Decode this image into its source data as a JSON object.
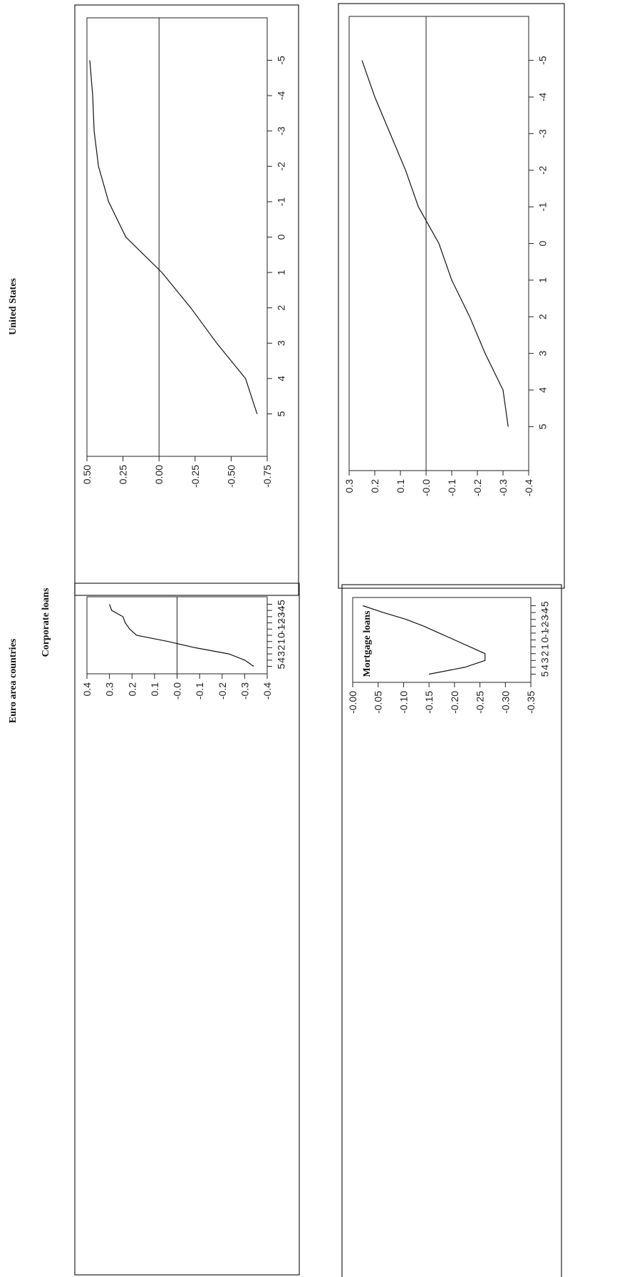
{
  "page": {
    "headings": {
      "euro": "Euro area countries",
      "corporate": "Corporate loans",
      "us": "United States",
      "mortgage": "Mortgage loans"
    }
  },
  "chart_data": [
    {
      "type": "line",
      "title": "",
      "panel": "Euro area countries / Corporate loans",
      "x": [
        -5,
        -4,
        -3,
        -2,
        -1,
        0,
        1,
        2,
        3,
        4,
        5
      ],
      "series": [
        {
          "values": [
            0.3,
            0.29,
            0.24,
            0.23,
            0.21,
            0.18,
            0.04,
            -0.08,
            -0.23,
            -0.3,
            -0.34
          ]
        }
      ],
      "xlim": [
        -6.2,
        6.2
      ],
      "xticks": [
        "-5",
        "-4",
        "-3",
        "-2",
        "-1",
        "0",
        "1",
        "2",
        "3",
        "4",
        "5"
      ],
      "ylim": [
        -0.4,
        0.4
      ],
      "yticks": [
        "0.4",
        "0.3",
        "0.2",
        "0.1",
        "-0.0",
        "-0.1",
        "-0.2",
        "-0.3",
        "-0.4"
      ],
      "zero_line": true
    },
    {
      "type": "line",
      "title": "",
      "panel": "United States / Corporate loans",
      "x": [
        -5,
        -4,
        -3,
        -2,
        -1,
        0,
        1,
        2,
        3,
        4,
        5
      ],
      "series": [
        {
          "values": [
            0.48,
            0.46,
            0.45,
            0.42,
            0.35,
            0.23,
            -0.02,
            -0.22,
            -0.4,
            -0.6,
            -0.68
          ]
        }
      ],
      "xlim": [
        -6.2,
        6.2
      ],
      "xticks": [
        "-5",
        "-4",
        "-3",
        "-2",
        "-1",
        "0",
        "1",
        "2",
        "3",
        "4",
        "5"
      ],
      "ylim": [
        -0.75,
        0.5
      ],
      "yticks": [
        "0.50",
        "0.25",
        "0.00",
        "-0.25",
        "-0.50",
        "-0.75"
      ],
      "zero_line": true
    },
    {
      "type": "line",
      "title": "",
      "panel": "Euro area countries / Mortgage loans",
      "x": [
        -5,
        -4,
        -3,
        -2,
        -1,
        0,
        1,
        2,
        3,
        4,
        5
      ],
      "series": [
        {
          "values": [
            -0.02,
            -0.06,
            -0.105,
            -0.14,
            -0.17,
            -0.2,
            -0.23,
            -0.26,
            -0.26,
            -0.22,
            -0.15
          ]
        }
      ],
      "xlim": [
        -6.2,
        6.2
      ],
      "xticks": [
        "-5",
        "-4",
        "-3",
        "-2",
        "-1",
        "0",
        "1",
        "2",
        "3",
        "4",
        "5"
      ],
      "ylim": [
        -0.35,
        0.0
      ],
      "yticks": [
        "-0.00",
        "-0.05",
        "-0.10",
        "-0.15",
        "-0.20",
        "-0.25",
        "-0.30",
        "-0.35"
      ],
      "zero_line": false
    },
    {
      "type": "line",
      "title": "",
      "panel": "United States / Mortgage loans",
      "x": [
        -5,
        -4,
        -3,
        -2,
        -1,
        0,
        1,
        2,
        3,
        4,
        5
      ],
      "series": [
        {
          "values": [
            0.25,
            0.2,
            0.14,
            0.08,
            0.03,
            -0.05,
            -0.1,
            -0.17,
            -0.23,
            -0.3,
            -0.32
          ]
        }
      ],
      "xlim": [
        -6.2,
        6.2
      ],
      "xticks": [
        "-5",
        "-4",
        "-3",
        "-2",
        "-1",
        "0",
        "1",
        "2",
        "3",
        "4",
        "5"
      ],
      "ylim": [
        -0.4,
        0.3
      ],
      "yticks": [
        "0.3",
        "0.2",
        "0.1",
        "-0.0",
        "-0.1",
        "-0.2",
        "-0.3",
        "-0.4"
      ],
      "zero_line": true
    }
  ]
}
